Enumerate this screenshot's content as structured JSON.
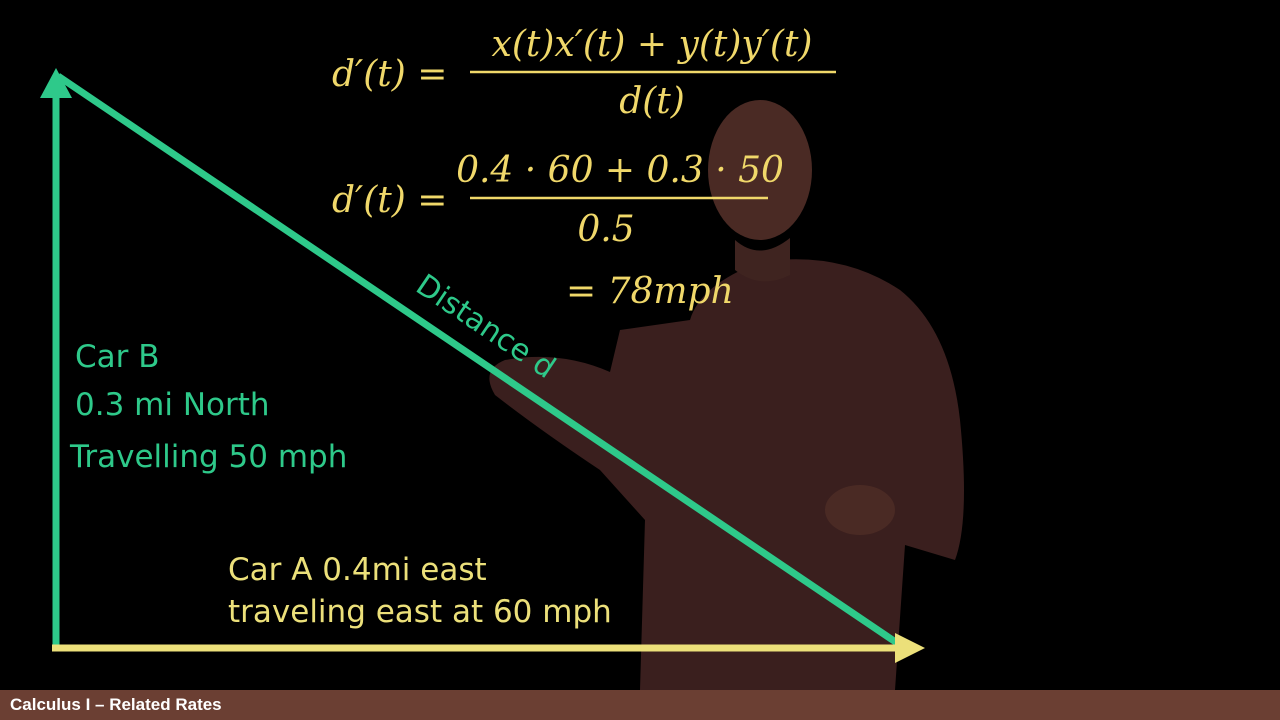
{
  "colors": {
    "background": "#000000",
    "green": "#2ec98a",
    "yellow": "#ece07a",
    "equation": "#f0d86a",
    "footer_bg": "#6b3f33",
    "footer_text": "#ffffff"
  },
  "equations": {
    "eq1_lhs": "d′(t) =",
    "eq1_num": "x(t)x′(t) + y(t)y′(t)",
    "eq1_den": "d(t)",
    "eq2_lhs": "d′(t) =",
    "eq2_num": "0.4 · 60 + 0.3 · 50",
    "eq2_den": "0.5",
    "result": "= 78mph"
  },
  "labels": {
    "car_b_title": "Car B",
    "car_b_position": "0.3 mi North",
    "car_b_speed": "Travelling 50 mph",
    "distance": "Distance d",
    "car_a_position": "Car A 0.4mi east",
    "car_a_speed": "traveling east at 60 mph"
  },
  "footer": {
    "title": "Calculus I – Related Rates"
  }
}
